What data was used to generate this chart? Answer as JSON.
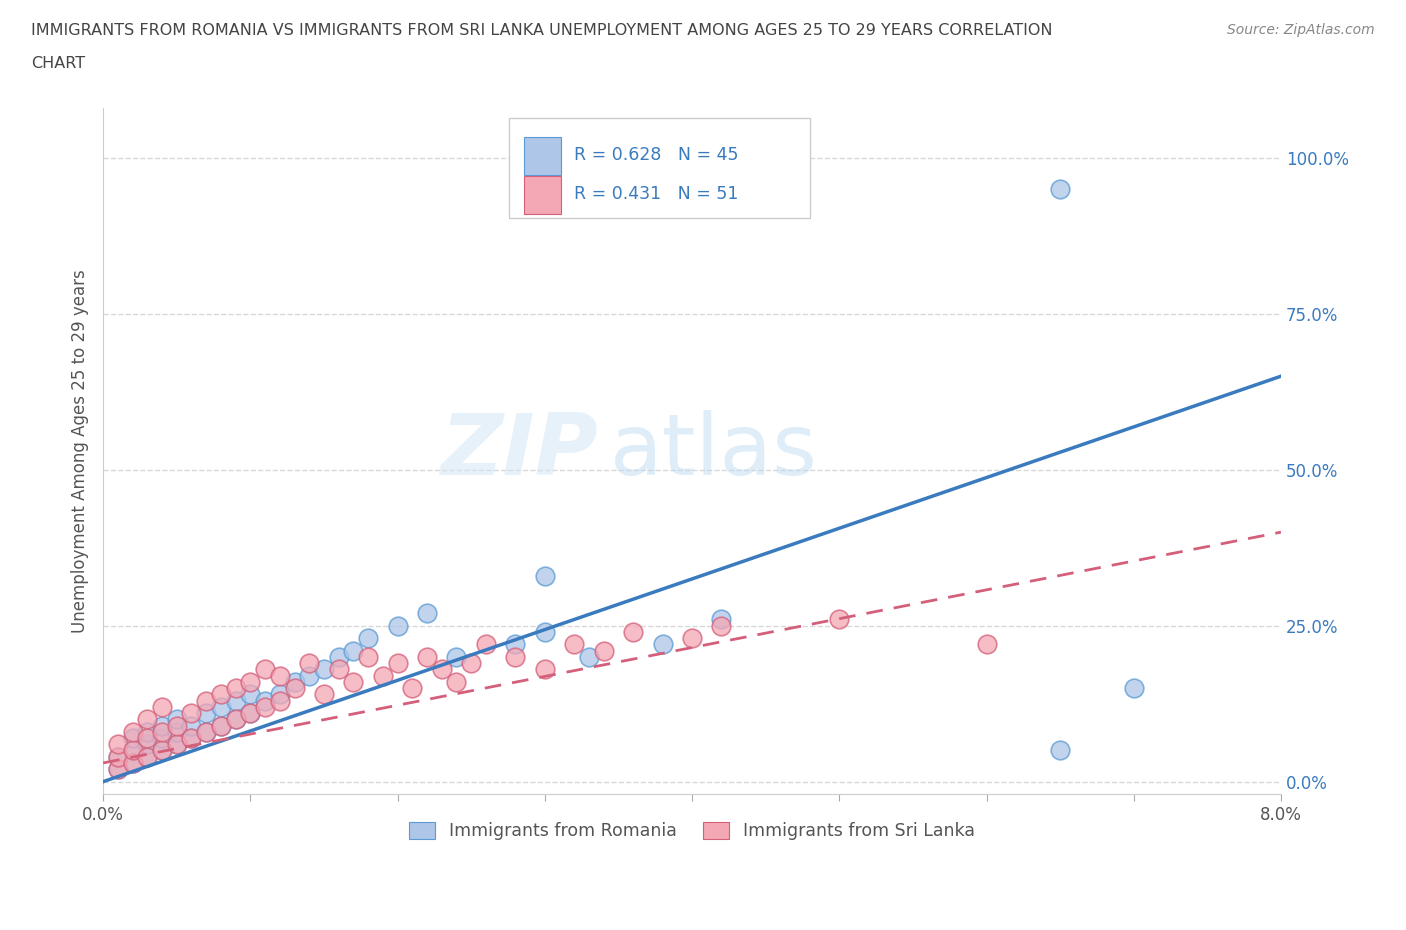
{
  "title_line1": "IMMIGRANTS FROM ROMANIA VS IMMIGRANTS FROM SRI LANKA UNEMPLOYMENT AMONG AGES 25 TO 29 YEARS CORRELATION",
  "title_line2": "CHART",
  "source_text": "Source: ZipAtlas.com",
  "ylabel": "Unemployment Among Ages 25 to 29 years",
  "yticks": [
    "0.0%",
    "25.0%",
    "50.0%",
    "75.0%",
    "100.0%"
  ],
  "ytick_vals": [
    0.0,
    0.25,
    0.5,
    0.75,
    1.0
  ],
  "xrange": [
    0.0,
    0.08
  ],
  "yrange": [
    -0.02,
    1.08
  ],
  "romania_color": "#aec6e8",
  "romania_edge": "#5b9bd5",
  "srilanka_color": "#f4a7b4",
  "srilanka_edge": "#d45f7a",
  "regression_romania_color": "#3a7bbf",
  "regression_srilanka_color": "#d45f7a",
  "legend_r_romania": "R = 0.628",
  "legend_n_romania": "N = 45",
  "legend_r_srilanka": "R = 0.431",
  "legend_n_srilanka": "N = 51",
  "legend_label_romania": "Immigrants from Romania",
  "legend_label_srilanka": "Immigrants from Sri Lanka",
  "watermark_zip": "ZIP",
  "watermark_atlas": "atlas",
  "background_color": "#ffffff",
  "grid_color": "#d8d8d8",
  "text_color_blue": "#3a7bbf",
  "title_color": "#444444",
  "tick_color": "#3a7bbf",
  "ylabel_color": "#555555",
  "source_color": "#888888"
}
